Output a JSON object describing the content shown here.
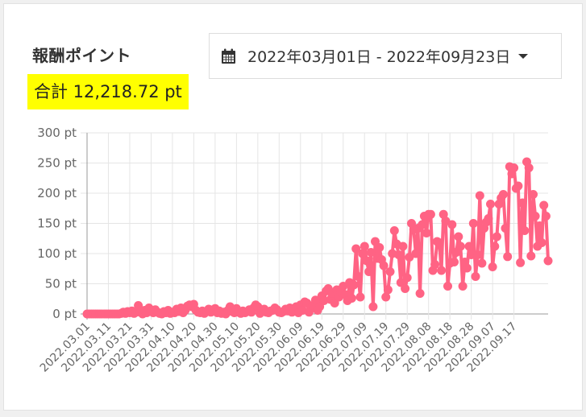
{
  "header": {
    "title": "報酬ポイント",
    "total_label": "合計 12,218.72 pt"
  },
  "date_range": {
    "icon": "calendar-icon",
    "label": "2022年03月01日 - 2022年09月23日",
    "dropdown_icon": "caret-down-icon"
  },
  "colors": {
    "line": "#ff6384",
    "highlight": "#ffff00",
    "grid": "#e5e5e5",
    "axis": "#999999"
  },
  "chart_data": {
    "type": "line",
    "title": "報酬ポイント",
    "xlabel": "",
    "ylabel": "",
    "ylim": [
      0,
      300
    ],
    "y_ticks": [
      "0 pt",
      "50 pt",
      "100 pt",
      "150 pt",
      "200 pt",
      "250 pt",
      "300 pt"
    ],
    "x_tick_labels": [
      "2022.03.01",
      "2022.03.11",
      "2022.03.21",
      "2022.03.31",
      "2022.04.10",
      "2022.04.20",
      "2022.04.30",
      "2022.05.10",
      "2022.05.20",
      "2022.05.30",
      "2022.06.09",
      "2022.06.19",
      "2022.06.29",
      "2022.07.09",
      "2022.07.19",
      "2022.07.29",
      "2022.08.08",
      "2022.08.18",
      "2022.08.28",
      "2022.09.07",
      "2022.09.17"
    ],
    "x_start": "2022.03.01",
    "x_end": "2022.09.23",
    "grid": true,
    "legend": null,
    "series": [
      {
        "name": "報酬ポイント",
        "unit": "pt",
        "values": [
          0,
          0,
          0,
          0,
          0,
          0,
          0,
          0,
          0,
          0,
          0,
          0,
          0,
          0,
          0,
          0,
          1,
          3,
          1,
          4,
          2,
          5,
          1,
          3,
          14,
          3,
          0,
          6,
          2,
          10,
          5,
          2,
          7,
          3,
          1,
          0,
          4,
          2,
          6,
          1,
          3,
          2,
          8,
          4,
          10,
          2,
          6,
          13,
          15,
          12,
          16,
          6,
          3,
          2,
          5,
          1,
          4,
          8,
          3,
          7,
          9,
          2,
          5,
          1,
          3,
          0,
          6,
          12,
          4,
          2,
          9,
          3,
          1,
          5,
          2,
          4,
          7,
          3,
          10,
          15,
          12,
          1,
          4,
          8,
          3,
          2,
          5,
          6,
          10,
          7,
          3,
          2,
          4,
          8,
          5,
          10,
          3,
          6,
          12,
          2,
          15,
          6,
          20,
          18,
          3,
          10,
          14,
          23,
          6,
          12,
          30,
          22,
          38,
          42,
          24,
          34,
          18,
          40,
          28,
          36,
          46,
          32,
          22,
          52,
          26,
          48,
          108,
          62,
          28,
          100,
          112,
          88,
          70,
          102,
          12,
          120,
          92,
          110,
          90,
          80,
          28,
          40,
          70,
          100,
          138,
          116,
          98,
          52,
          112,
          42,
          60,
          94,
          150,
          140,
          100,
          142,
          34,
          148,
          162,
          134,
          165,
          165,
          72,
          82,
          120,
          118,
          72,
          165,
          154,
          46,
          84,
          148,
          86,
          102,
          128,
          112,
          46,
          86,
          76,
          112,
          98,
          150,
          62,
          98,
          196,
          84,
          142,
          152,
          158,
          182,
          78,
          112,
          128,
          182,
          192,
          198,
          142,
          95,
          244,
          232,
          242,
          208,
          212,
          85,
          184,
          138,
          252,
          242,
          96,
          198,
          162,
          112,
          146,
          118,
          180,
          162,
          88
        ]
      }
    ]
  }
}
